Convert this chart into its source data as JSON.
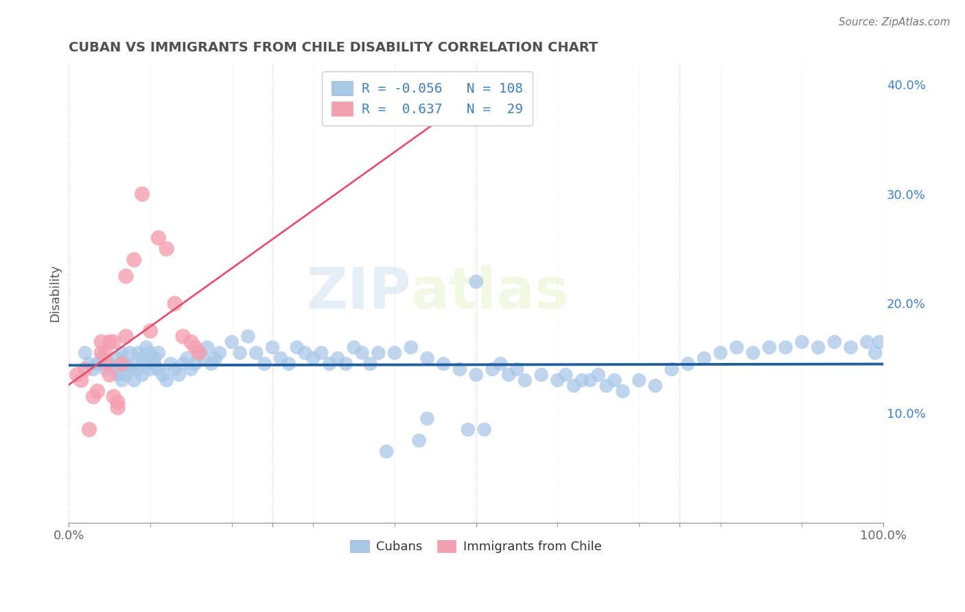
{
  "title": "CUBAN VS IMMIGRANTS FROM CHILE DISABILITY CORRELATION CHART",
  "source_text": "Source: ZipAtlas.com",
  "ylabel": "Disability",
  "watermark_zip": "ZIP",
  "watermark_atlas": "atlas",
  "cubans_R": -0.056,
  "cubans_N": 108,
  "chile_R": 0.637,
  "chile_N": 29,
  "xlim": [
    0.0,
    1.0
  ],
  "ylim": [
    0.0,
    0.42
  ],
  "x_ticks": [
    0.0,
    0.25,
    0.5,
    0.75,
    1.0
  ],
  "x_tick_labels": [
    "0.0%",
    "",
    "",
    "",
    "100.0%"
  ],
  "y_ticks_right": [
    0.1,
    0.2,
    0.3,
    0.4
  ],
  "y_tick_labels_right": [
    "10.0%",
    "20.0%",
    "30.0%",
    "40.0%"
  ],
  "blue_dot_color": "#a8c8e8",
  "blue_line_color": "#2060a0",
  "pink_dot_color": "#f4a0b0",
  "pink_line_color": "#e05070",
  "legend_text_color": "#4080c0",
  "title_color": "#505050",
  "grid_color": "#c8c8c8",
  "background_color": "#ffffff",
  "cubans_x": [
    0.02,
    0.025,
    0.03,
    0.035,
    0.04,
    0.045,
    0.05,
    0.055,
    0.06,
    0.06,
    0.065,
    0.065,
    0.07,
    0.07,
    0.075,
    0.075,
    0.08,
    0.08,
    0.085,
    0.085,
    0.09,
    0.09,
    0.095,
    0.095,
    0.1,
    0.1,
    0.105,
    0.105,
    0.11,
    0.11,
    0.115,
    0.12,
    0.125,
    0.13,
    0.135,
    0.14,
    0.145,
    0.15,
    0.155,
    0.16,
    0.165,
    0.17,
    0.175,
    0.18,
    0.185,
    0.2,
    0.21,
    0.22,
    0.23,
    0.24,
    0.25,
    0.26,
    0.27,
    0.28,
    0.29,
    0.3,
    0.31,
    0.32,
    0.33,
    0.34,
    0.35,
    0.36,
    0.37,
    0.38,
    0.4,
    0.42,
    0.44,
    0.46,
    0.48,
    0.5,
    0.52,
    0.53,
    0.54,
    0.55,
    0.56,
    0.58,
    0.6,
    0.61,
    0.62,
    0.63,
    0.64,
    0.65,
    0.66,
    0.67,
    0.68,
    0.7,
    0.72,
    0.74,
    0.76,
    0.78,
    0.8,
    0.82,
    0.84,
    0.86,
    0.88,
    0.9,
    0.92,
    0.94,
    0.96,
    0.98,
    0.99,
    0.995,
    0.5,
    0.49,
    0.51,
    0.43,
    0.44,
    0.39
  ],
  "cubans_y": [
    0.155,
    0.145,
    0.14,
    0.145,
    0.15,
    0.14,
    0.145,
    0.14,
    0.135,
    0.15,
    0.13,
    0.155,
    0.135,
    0.145,
    0.14,
    0.155,
    0.13,
    0.145,
    0.14,
    0.155,
    0.135,
    0.15,
    0.145,
    0.16,
    0.14,
    0.155,
    0.15,
    0.145,
    0.14,
    0.155,
    0.135,
    0.13,
    0.145,
    0.14,
    0.135,
    0.145,
    0.15,
    0.14,
    0.145,
    0.155,
    0.15,
    0.16,
    0.145,
    0.15,
    0.155,
    0.165,
    0.155,
    0.17,
    0.155,
    0.145,
    0.16,
    0.15,
    0.145,
    0.16,
    0.155,
    0.15,
    0.155,
    0.145,
    0.15,
    0.145,
    0.16,
    0.155,
    0.145,
    0.155,
    0.155,
    0.16,
    0.15,
    0.145,
    0.14,
    0.135,
    0.14,
    0.145,
    0.135,
    0.14,
    0.13,
    0.135,
    0.13,
    0.135,
    0.125,
    0.13,
    0.13,
    0.135,
    0.125,
    0.13,
    0.12,
    0.13,
    0.125,
    0.14,
    0.145,
    0.15,
    0.155,
    0.16,
    0.155,
    0.16,
    0.16,
    0.165,
    0.16,
    0.165,
    0.16,
    0.165,
    0.155,
    0.165,
    0.22,
    0.085,
    0.085,
    0.075,
    0.095,
    0.065
  ],
  "chile_x": [
    0.01,
    0.015,
    0.02,
    0.025,
    0.03,
    0.035,
    0.04,
    0.045,
    0.05,
    0.055,
    0.06,
    0.065,
    0.07,
    0.08,
    0.09,
    0.1,
    0.11,
    0.12,
    0.13,
    0.14,
    0.15,
    0.155,
    0.16,
    0.05,
    0.06,
    0.07,
    0.04,
    0.055,
    0.045
  ],
  "chile_y": [
    0.135,
    0.13,
    0.14,
    0.085,
    0.115,
    0.12,
    0.165,
    0.145,
    0.135,
    0.115,
    0.11,
    0.145,
    0.225,
    0.24,
    0.3,
    0.175,
    0.26,
    0.25,
    0.2,
    0.17,
    0.165,
    0.16,
    0.155,
    0.165,
    0.105,
    0.17,
    0.155,
    0.165,
    0.155
  ]
}
